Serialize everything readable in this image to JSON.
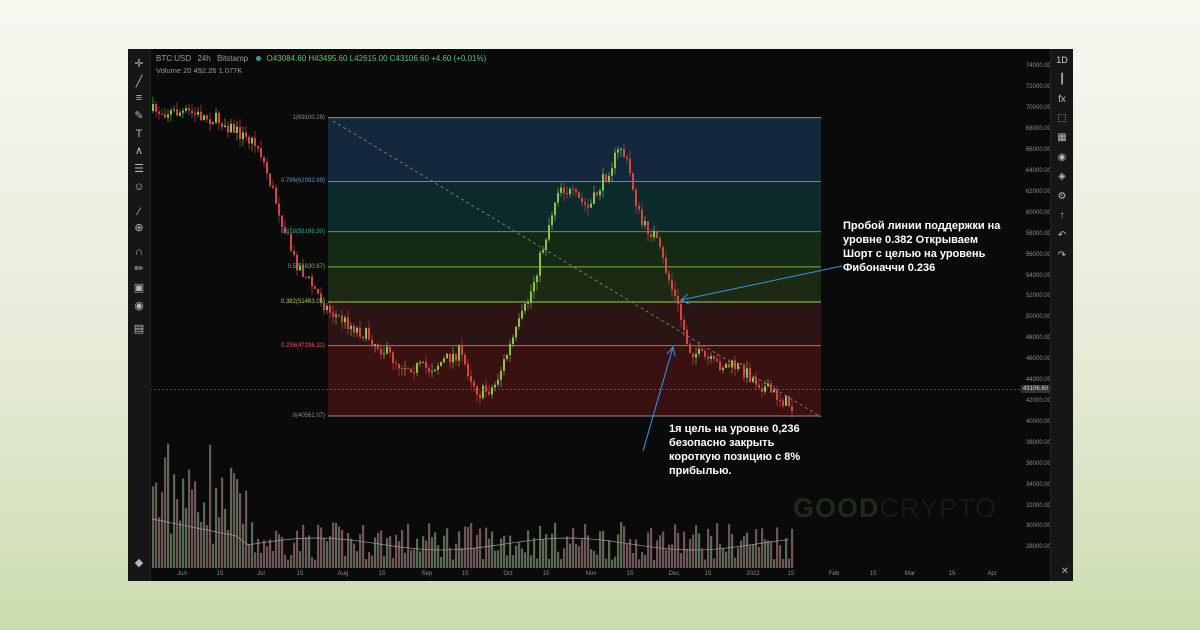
{
  "header": {
    "symbol": "BTC:USD",
    "interval": "24h",
    "exchange": "Bitstamp",
    "ohlc": "O43084.60 H43495.60 L42615.00 C43106.60 +4.60 (+0.01%)",
    "volume_label": "Volume 20",
    "volume_values": "492.26  1.077K"
  },
  "toolbars": {
    "left": [
      "crosshair-icon",
      "trend-line-icon",
      "horizontal-lines-icon",
      "brush-icon",
      "text-icon",
      "pattern-icon",
      "measure-lines-icon",
      "emoji-icon",
      "ruler-icon",
      "zoom-in-icon",
      "magnet-icon",
      "stay-in-draw-icon",
      "lock-icon",
      "eye-icon",
      "trash-icon"
    ],
    "right": [
      "candles-icon",
      "fx-icon",
      "fullscreen-icon",
      "layers-icon",
      "eye-icon",
      "stack-icon",
      "gear-icon",
      "share-icon",
      "undo-icon",
      "redo-icon"
    ],
    "interval_button": "1D",
    "bottom_left_icon": "layers-icon",
    "bottom_right_icon": "close-icon"
  },
  "price_axis": {
    "ticks": [
      "74000.00",
      "72000.00",
      "70000.00",
      "68000.00",
      "66000.00",
      "64000.00",
      "62000.00",
      "60000.00",
      "58000.00",
      "56000.00",
      "54000.00",
      "52000.00",
      "50000.00",
      "48000.00",
      "46000.00",
      "44000.00",
      "42000.00",
      "40000.00",
      "38000.00",
      "36000.00",
      "34000.00",
      "32000.00",
      "30000.00",
      "28000.00"
    ],
    "current_price": "43106.60"
  },
  "time_axis": {
    "ticks": [
      "Jun",
      "15",
      "Jul",
      "15",
      "Aug",
      "15",
      "Sep",
      "15",
      "Oct",
      "15",
      "Nov",
      "15",
      "Dec",
      "15",
      "2022",
      "15",
      "Feb",
      "15",
      "Mar",
      "15",
      "Apr"
    ]
  },
  "fib_levels": [
    {
      "label": "1(69100.28)",
      "price": 69100.28,
      "color": "#8e8e8e"
    },
    {
      "label": "0.786(62992.89)",
      "price": 62992.89,
      "color": "#4a8fd8"
    },
    {
      "label": "0.618(58198.30)",
      "price": 58198.3,
      "color": "#26a69a"
    },
    {
      "label": "0.5(54830.67)",
      "price": 54830.67,
      "color": "#7cb342"
    },
    {
      "label": "0.382(51463.05)",
      "price": 51463.05,
      "color": "#9ccc65"
    },
    {
      "label": "0.236(47296.32)",
      "price": 47296.32,
      "color": "#ef5350"
    },
    {
      "label": "0(40561.07)",
      "price": 40561.07,
      "color": "#8e8e8e"
    }
  ],
  "annotations": {
    "breakout": "Пробой линии поддержки на уровне 0.382 Открываем Шорт с целью на уровень Фибоначчи 0.236",
    "target": "1я цель на уровне 0,236 безопасно закрыть короткую позицию с 8% прибылью."
  },
  "watermark": {
    "part1": "GOOD",
    "part2": "CRYPTO"
  },
  "colors": {
    "up": "#8bc34a",
    "down": "#d64545",
    "arrow": "#2f8fe0"
  }
}
